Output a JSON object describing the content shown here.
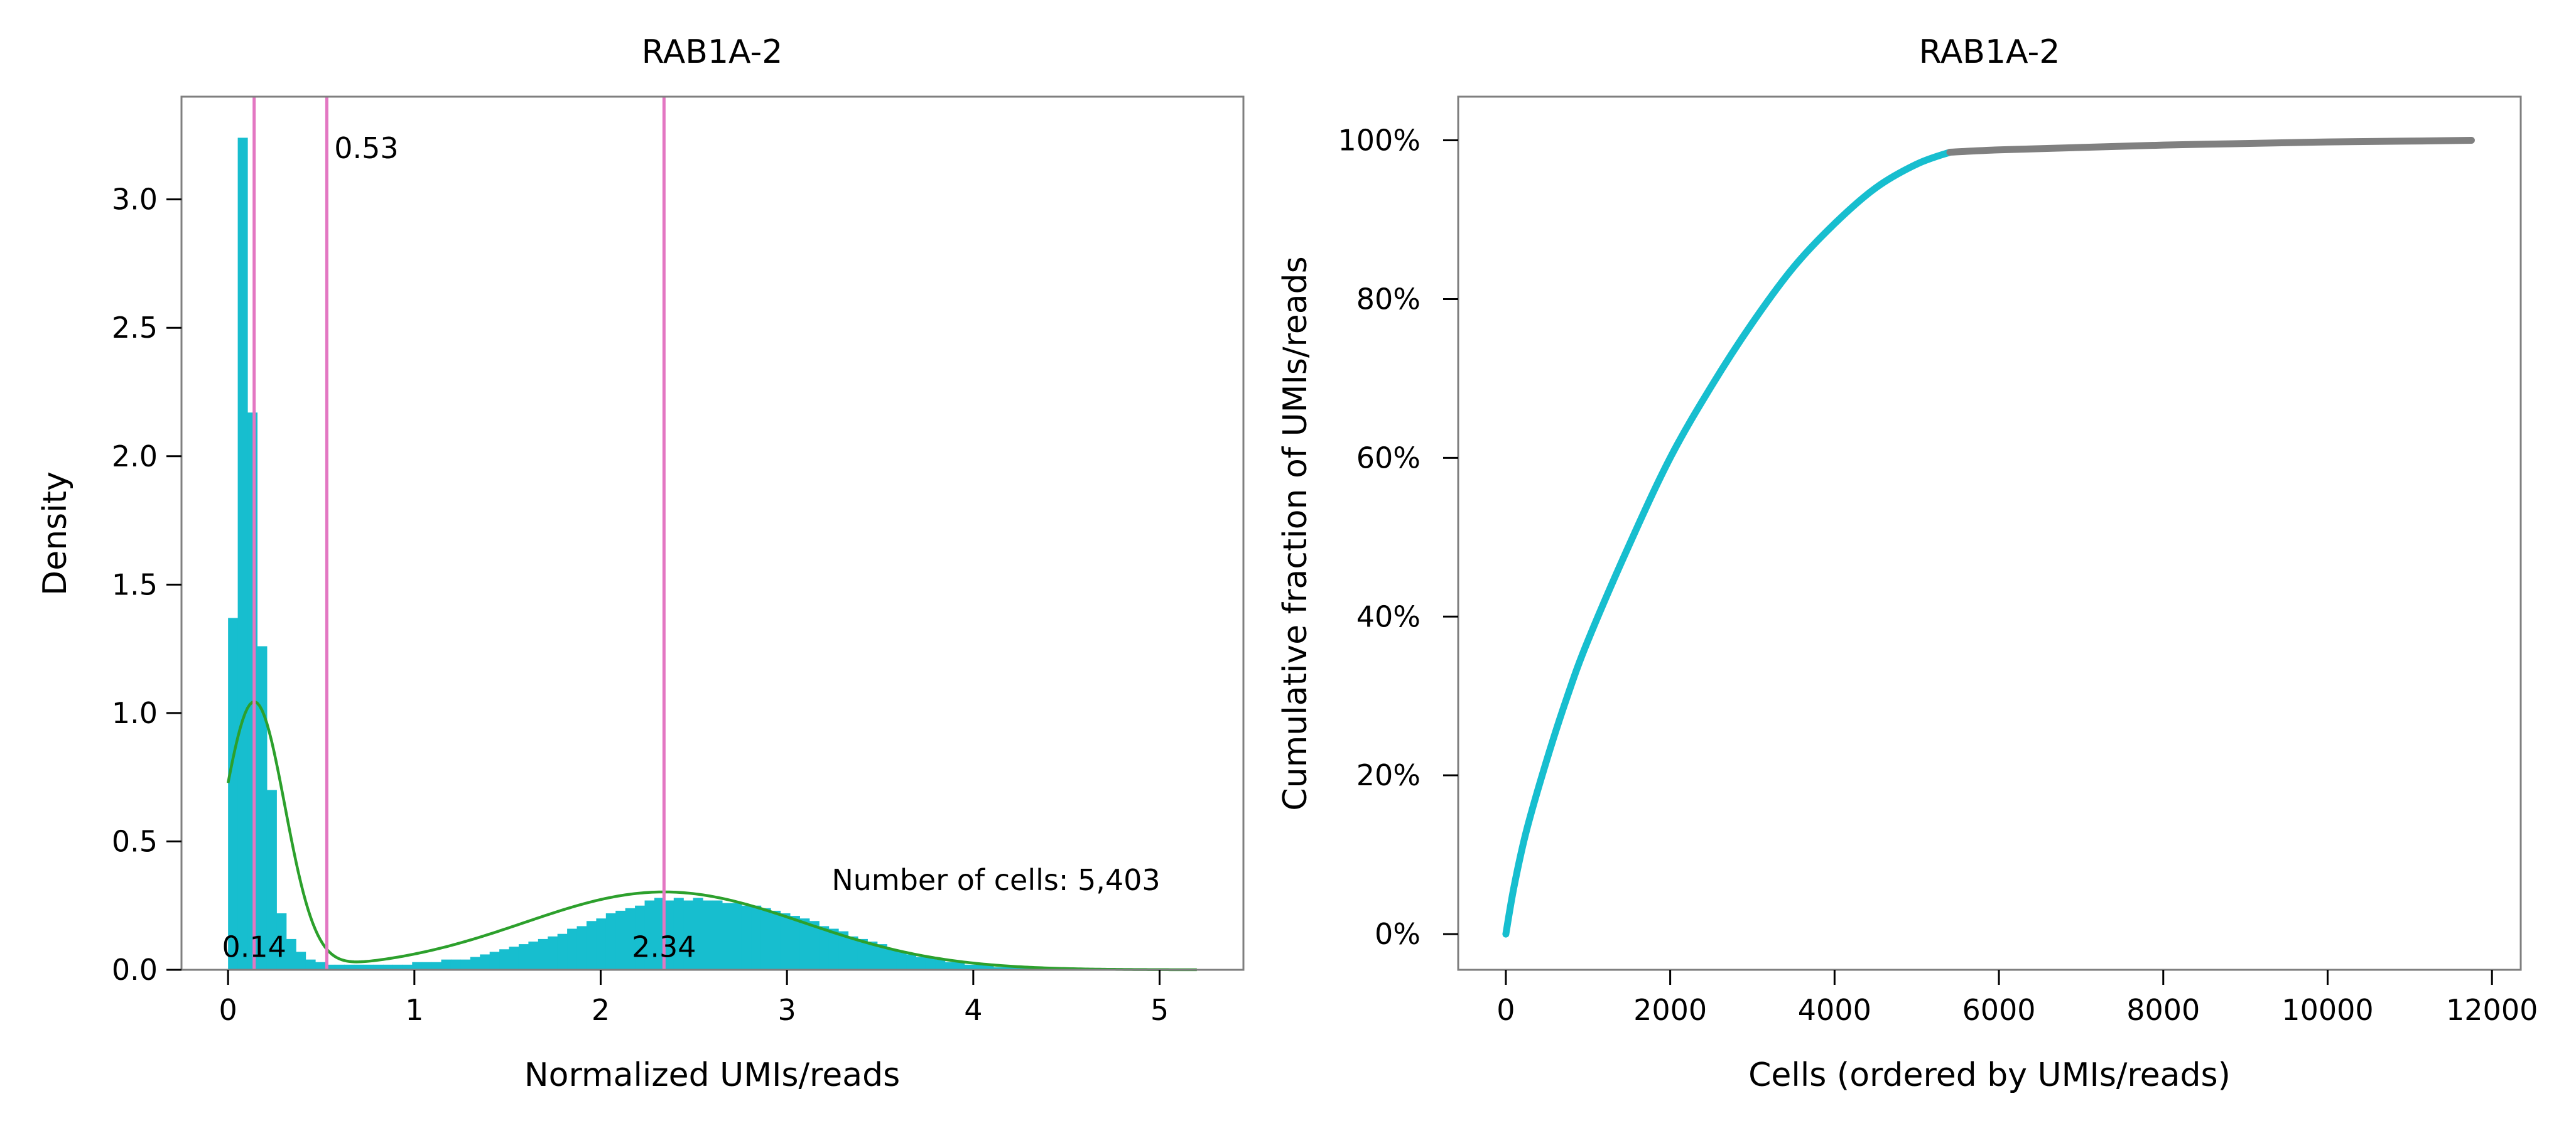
{
  "chart_data": [
    {
      "type": "histogram",
      "title": "RAB1A-2",
      "xlabel": "Normalized UMIs/reads",
      "ylabel": "Density",
      "xlim": [
        -0.25,
        5.45
      ],
      "ylim": [
        0,
        3.4
      ],
      "xticks": [
        0,
        1,
        2,
        3,
        4,
        5
      ],
      "yticks": [
        0.0,
        0.5,
        1.0,
        1.5,
        2.0,
        2.5,
        3.0
      ],
      "ytick_labels": [
        "0.0",
        "0.5",
        "1.0",
        "1.5",
        "2.0",
        "2.5",
        "3.0"
      ],
      "grid": false,
      "legend": "none",
      "colors": {
        "histogram": "#17becf",
        "kde": "#2ca02c",
        "vlines": "#e377c2"
      },
      "bin_width": 0.052,
      "bins_start": 0.0,
      "histogram_density": [
        1.37,
        3.24,
        2.17,
        1.26,
        0.7,
        0.22,
        0.12,
        0.07,
        0.04,
        0.03,
        0.02,
        0.02,
        0.02,
        0.02,
        0.02,
        0.02,
        0.02,
        0.02,
        0.02,
        0.03,
        0.03,
        0.03,
        0.04,
        0.04,
        0.04,
        0.05,
        0.06,
        0.07,
        0.08,
        0.09,
        0.1,
        0.11,
        0.12,
        0.13,
        0.14,
        0.16,
        0.17,
        0.19,
        0.2,
        0.22,
        0.23,
        0.24,
        0.25,
        0.27,
        0.28,
        0.27,
        0.28,
        0.27,
        0.28,
        0.27,
        0.27,
        0.26,
        0.26,
        0.25,
        0.25,
        0.24,
        0.23,
        0.22,
        0.21,
        0.2,
        0.19,
        0.17,
        0.16,
        0.15,
        0.13,
        0.12,
        0.11,
        0.1,
        0.08,
        0.07,
        0.06,
        0.05,
        0.05,
        0.04,
        0.03,
        0.03,
        0.02,
        0.02,
        0.02,
        0.01,
        0.01,
        0.01,
        0.01,
        0.01
      ],
      "kde": {
        "components": [
          {
            "weight": 0.43,
            "mean": 0.14,
            "sd": 0.165
          },
          {
            "weight": 0.57,
            "mean": 2.34,
            "sd": 0.75
          }
        ],
        "x_range": [
          0.0,
          5.2
        ],
        "curve_points": [
          [
            0.0,
            0.85
          ],
          [
            0.14,
            1.04
          ],
          [
            0.3,
            0.7
          ],
          [
            0.53,
            0.18
          ],
          [
            0.8,
            0.04
          ],
          [
            1.0,
            0.04
          ],
          [
            1.5,
            0.09
          ],
          [
            2.0,
            0.22
          ],
          [
            2.34,
            0.26
          ],
          [
            2.8,
            0.21
          ],
          [
            3.5,
            0.09
          ],
          [
            4.0,
            0.04
          ],
          [
            5.2,
            0.0
          ]
        ]
      },
      "vlines": [
        0.14,
        0.53,
        2.34
      ],
      "annotations": [
        {
          "text": "0.53",
          "x": 0.57,
          "y": 3.16
        },
        {
          "text": "0.14",
          "x": 0.14,
          "y": 0.05
        },
        {
          "text": "2.34",
          "x": 2.34,
          "y": 0.05
        },
        {
          "text": "Number of cells: 5,403",
          "x": 3.24,
          "y": 0.31
        }
      ]
    },
    {
      "type": "line",
      "title": "RAB1A-2",
      "xlabel": "Cells (ordered by UMIs/reads)",
      "ylabel": "Cumulative fraction of UMIs/reads",
      "xlim": [
        -580,
        12350
      ],
      "ylim": [
        -0.045,
        1.055
      ],
      "xticks": [
        0,
        2000,
        4000,
        6000,
        8000,
        10000,
        12000
      ],
      "yticks": [
        0,
        0.2,
        0.4,
        0.6,
        0.8,
        1.0
      ],
      "ytick_labels": [
        "0%",
        "20%",
        "40%",
        "60%",
        "80%",
        "100%"
      ],
      "grid": false,
      "legend": "none",
      "series": [
        {
          "color": "#17becf",
          "x": [
            0,
            100,
            250,
            500,
            750,
            1000,
            1500,
            2000,
            2500,
            3000,
            3500,
            4000,
            4500,
            5000,
            5403
          ],
          "y": [
            0.0,
            0.06,
            0.13,
            0.22,
            0.3,
            0.37,
            0.49,
            0.6,
            0.69,
            0.77,
            0.84,
            0.895,
            0.94,
            0.97,
            0.985
          ]
        },
        {
          "color": "#808080",
          "x": [
            5403,
            6000,
            7000,
            8000,
            9000,
            10000,
            11000,
            11750
          ],
          "y": [
            0.985,
            0.988,
            0.991,
            0.994,
            0.996,
            0.998,
            0.999,
            1.0
          ]
        }
      ]
    }
  ]
}
